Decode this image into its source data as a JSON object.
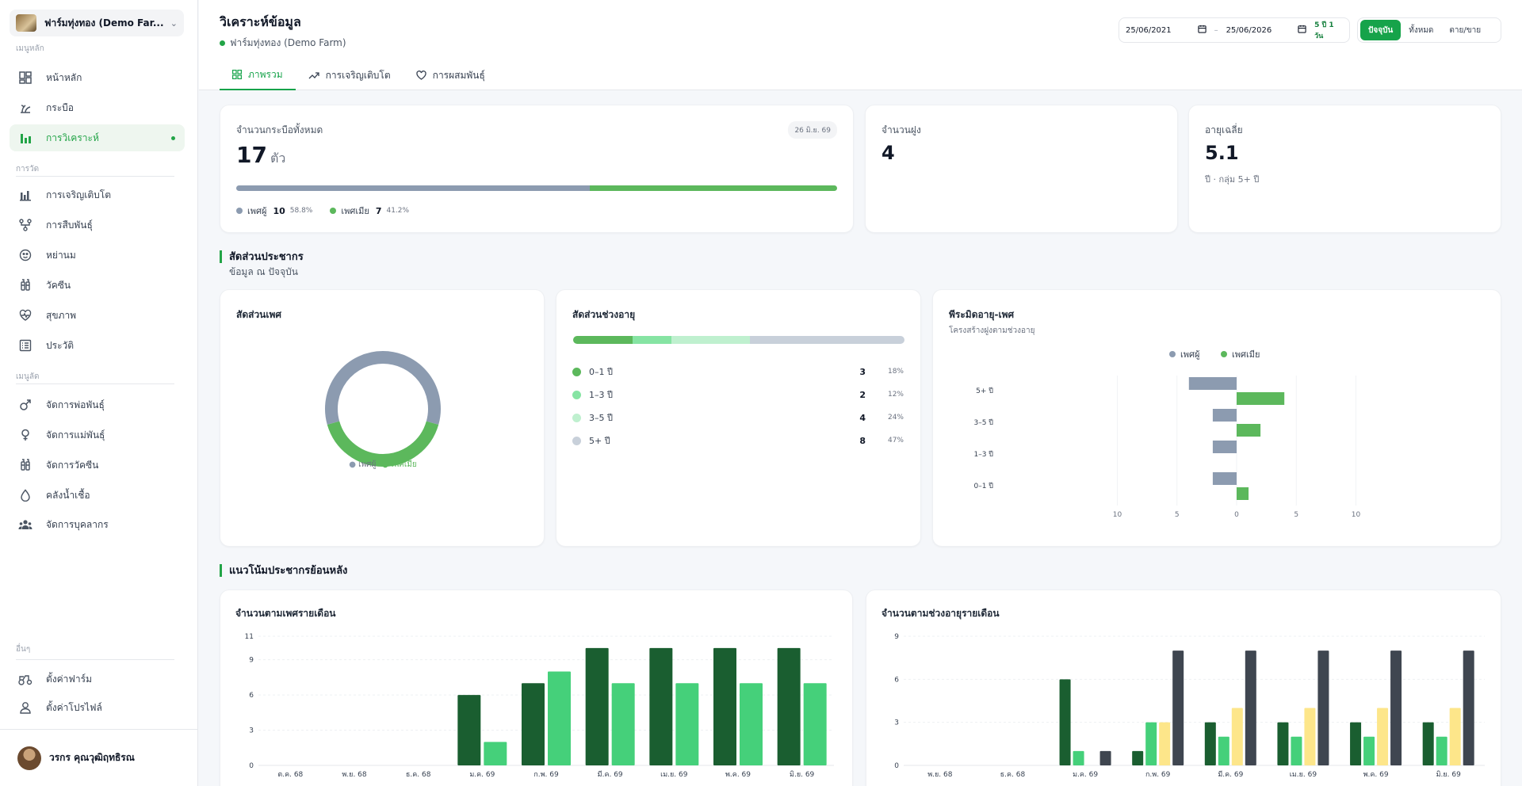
{
  "sidebar": {
    "farm_name": "ฟาร์มทุ่งทอง (Demo Far...",
    "sections": [
      "เมนูหลัก",
      "การวัด",
      "เมนูลัด",
      "อื่นๆ"
    ],
    "items": [
      {
        "label": "หน้าหลัก",
        "icon": "dashboard-icon"
      },
      {
        "label": "กระบือ",
        "icon": "buffalo-icon"
      },
      {
        "label": "การวิเคราะห์",
        "icon": "analytics-icon"
      },
      {
        "label": "การเจริญเติบโต",
        "icon": "growth-chart-icon"
      },
      {
        "label": "การสืบพันธุ์",
        "icon": "breeding-icon"
      },
      {
        "label": "หย่านม",
        "icon": "weaning-icon"
      },
      {
        "label": "วัคซีน",
        "icon": "vaccine-icon"
      },
      {
        "label": "สุขภาพ",
        "icon": "health-icon"
      },
      {
        "label": "ประวัติ",
        "icon": "history-icon"
      },
      {
        "label": "จัดการพ่อพันธุ์",
        "icon": "male-icon"
      },
      {
        "label": "จัดการแม่พันธุ์",
        "icon": "female-icon"
      },
      {
        "label": "จัดการวัคซีน",
        "icon": "vaccine-manage-icon"
      },
      {
        "label": "คลังน้ำเชื้อ",
        "icon": "semen-drop-icon"
      },
      {
        "label": "จัดการบุคลากร",
        "icon": "staff-icon"
      },
      {
        "label": "ตั้งค่าฟาร์ม",
        "icon": "farm-settings-icon"
      },
      {
        "label": "ตั้งค่าโปรไฟล์",
        "icon": "profile-settings-icon"
      }
    ],
    "user_name": "วรกร คุณวุฒิฤทธิรณ"
  },
  "header": {
    "title": "วิเคราะห์ข้อมูล",
    "farm": "ฟาร์มทุ่งทอง (Demo Farm)",
    "date_from": "25/06/2021",
    "date_to": "25/06/2026",
    "days_badge": "5 ปี 1 วัน",
    "range_buttons": [
      "ปัจจุบัน",
      "ทั้งหมด",
      "ตาย/ขาย"
    ],
    "tabs": [
      "ภาพรวม",
      "การเจริญเติบโต",
      "การผสมพันธุ์"
    ]
  },
  "summary": {
    "total_label": "จำนวนกระบือทั้งหมด",
    "total_value": "17",
    "total_unit": "ตัว",
    "date_pill": "26 มิ.ย. 69",
    "male_label": "เพศผู้",
    "male_count": "10",
    "male_pct": "58.8%",
    "female_label": "เพศเมีย",
    "female_count": "7",
    "female_pct": "41.2%",
    "male_fraction": 0.588,
    "herd_label": "จำนวนฝูง",
    "herd_value": "4",
    "age_label": "อายุเฉลี่ย",
    "age_value": "5.1",
    "age_sub": "ปี · กลุ่ม 5+ ปี"
  },
  "colors": {
    "male": "#8c9bb0",
    "female": "#5cb85c",
    "accent": "#16a34a",
    "dark_green": "#1a5e30",
    "light_green": "#45d07a",
    "yellow": "#fde68a",
    "slate": "#3f4650"
  },
  "population": {
    "section_title": "สัดส่วนประชากร",
    "section_sub": "ข้อมูล ณ ปัจจุบัน",
    "gender_title": "สัดส่วนเพศ",
    "gender_legend": [
      "เพศผู้",
      "เพศเมีย"
    ],
    "age_title": "สัดส่วนช่วงอายุ",
    "age_groups": [
      {
        "label": "0–1 ปี",
        "count": "3",
        "pct": "18%",
        "value": 18,
        "color": "#5cb85c"
      },
      {
        "label": "1–3 ปี",
        "count": "2",
        "pct": "12%",
        "value": 12,
        "color": "#86e4a3"
      },
      {
        "label": "3–5 ปี",
        "count": "4",
        "pct": "24%",
        "value": 24,
        "color": "#bff0cf"
      },
      {
        "label": "5+ ปี",
        "count": "8",
        "pct": "47%",
        "value": 47,
        "color": "#c8d0da"
      }
    ],
    "pyramid_title": "พีระมิดอายุ-เพศ",
    "pyramid_sub": "โครงสร้างฝูงตามช่วงอายุ"
  },
  "trend": {
    "section_title": "แนวโน้มประชากรย้อนหลัง",
    "left_title": "จำนวนตามเพศรายเดือน",
    "right_title": "จำนวนตามช่วงอายุรายเดือน"
  },
  "chart_data": [
    {
      "type": "pie",
      "title": "สัดส่วนเพศ",
      "categories": [
        "เพศผู้",
        "เพศเมีย"
      ],
      "values": [
        10,
        7
      ]
    },
    {
      "type": "bar",
      "title": "พีระมิดอายุ-เพศ",
      "categories": [
        "5+ ปี",
        "3–5 ปี",
        "1–3 ปี",
        "0–1 ปี"
      ],
      "series": [
        {
          "name": "เพศผู้",
          "values": [
            -4,
            -2,
            -2,
            -2
          ]
        },
        {
          "name": "เพศเมีย",
          "values": [
            4,
            2,
            0,
            1
          ]
        }
      ],
      "xticks": [
        "10",
        "5",
        "0",
        "5",
        "10"
      ],
      "xlim": [
        -10,
        10
      ]
    },
    {
      "type": "bar",
      "title": "จำนวนตามเพศรายเดือน",
      "categories": [
        "ต.ค. 68",
        "พ.ย. 68",
        "ธ.ค. 68",
        "ม.ค. 69",
        "ก.พ. 69",
        "มี.ค. 69",
        "เม.ย. 69",
        "พ.ค. 69",
        "มิ.ย. 69"
      ],
      "series": [
        {
          "values": [
            0,
            0,
            0,
            6,
            7,
            10,
            10,
            10,
            10
          ]
        },
        {
          "values": [
            0,
            0,
            0,
            2,
            8,
            7,
            7,
            7,
            7
          ]
        }
      ],
      "yticks": [
        "0",
        "3",
        "6",
        "9",
        "11"
      ],
      "ylim": [
        0,
        11
      ]
    },
    {
      "type": "bar",
      "title": "จำนวนตามช่วงอายุรายเดือน",
      "categories": [
        "พ.ย. 68",
        "ธ.ค. 68",
        "ม.ค. 69",
        "ก.พ. 69",
        "มี.ค. 69",
        "เม.ย. 69",
        "พ.ค. 69",
        "มิ.ย. 69"
      ],
      "series": [
        {
          "values": [
            0,
            0,
            6,
            1,
            3,
            3,
            3,
            3
          ]
        },
        {
          "values": [
            0,
            0,
            1,
            3,
            2,
            2,
            2,
            2
          ]
        },
        {
          "values": [
            0,
            0,
            0,
            3,
            4,
            4,
            4,
            4
          ]
        },
        {
          "values": [
            0,
            0,
            1,
            8,
            8,
            8,
            8,
            8
          ]
        }
      ],
      "yticks": [
        "0",
        "3",
        "6",
        "9"
      ],
      "ylim": [
        0,
        9
      ]
    }
  ]
}
